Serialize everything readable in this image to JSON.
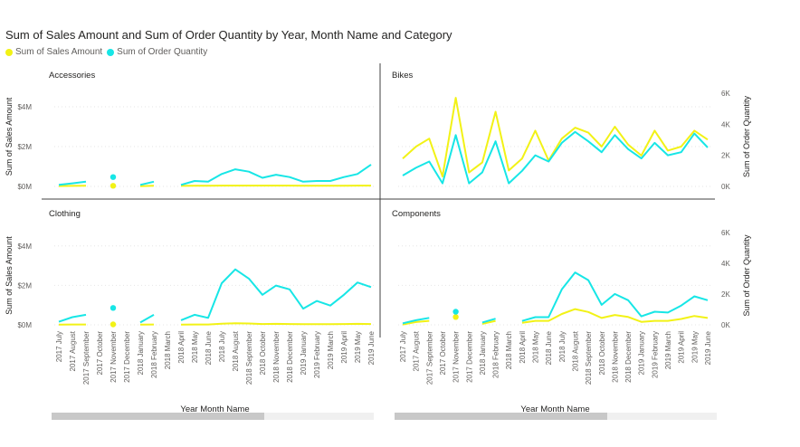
{
  "title": "Sum of Sales Amount and Sum of Order Quantity by Year, Month Name and Category",
  "legend": [
    {
      "label": "Sum of Sales Amount",
      "color": "#f2f216"
    },
    {
      "label": "Sum of Order Quantity",
      "color": "#17e6e6"
    }
  ],
  "chart_data": {
    "type": "line",
    "x_label": "Year Month Name",
    "y_left_label": "Sum of Sales Amount",
    "y_right_label": "Sum of Order Quantity",
    "y_left_ticks": [
      "$0M",
      "$2M",
      "$4M"
    ],
    "y_right_ticks": [
      "0K",
      "2K",
      "4K",
      "6K"
    ],
    "y_left_range": [
      0,
      5000000
    ],
    "y_right_range": [
      0,
      6400
    ],
    "categories": [
      "2017 July",
      "2017 August",
      "2017 September",
      "2017 October",
      "2017 November",
      "2017 December",
      "2018 January",
      "2018 February",
      "2018 March",
      "2018 April",
      "2018 May",
      "2018 June",
      "2018 July",
      "2018 August",
      "2018 September",
      "2018 October",
      "2018 November",
      "2018 December",
      "2019 January",
      "2019 February",
      "2019 March",
      "2019 April",
      "2019 May",
      "2019 June"
    ],
    "panels": [
      {
        "name": "Accessories",
        "sales": [
          20000,
          25000,
          30000,
          null,
          30000,
          null,
          15000,
          35000,
          null,
          25000,
          35000,
          35000,
          40000,
          40000,
          40000,
          40000,
          40000,
          40000,
          35000,
          35000,
          35000,
          35000,
          40000,
          40000
        ],
        "orders": [
          100,
          200,
          300,
          null,
          600,
          null,
          100,
          300,
          null,
          100,
          350,
          300,
          800,
          1100,
          950,
          550,
          750,
          600,
          300,
          350,
          350,
          600,
          800,
          1400
        ]
      },
      {
        "name": "Bikes",
        "sales": [
          1400000,
          2000000,
          2400000,
          500000,
          4450000,
          700000,
          1200000,
          3750000,
          800000,
          1400000,
          2800000,
          1300000,
          2400000,
          2950000,
          2700000,
          2000000,
          3000000,
          2100000,
          1550000,
          2800000,
          1800000,
          2000000,
          2800000,
          2350000
        ],
        "orders": [
          700,
          1200,
          1600,
          200,
          3300,
          200,
          900,
          2900,
          200,
          1000,
          2000,
          1600,
          2800,
          3500,
          2900,
          2200,
          3300,
          2400,
          1800,
          2800,
          2000,
          2200,
          3400,
          2500
        ]
      },
      {
        "name": "Clothing",
        "sales": [
          15000,
          20000,
          20000,
          null,
          25000,
          null,
          10000,
          20000,
          null,
          10000,
          20000,
          20000,
          60000,
          80000,
          70000,
          40000,
          50000,
          40000,
          30000,
          30000,
          30000,
          40000,
          50000,
          40000
        ],
        "orders": [
          200,
          500,
          650,
          null,
          1100,
          null,
          150,
          650,
          null,
          300,
          650,
          450,
          2700,
          3600,
          3000,
          1950,
          2550,
          2300,
          1050,
          1550,
          1250,
          1950,
          2750,
          2450
        ]
      },
      {
        "name": "Components",
        "sales": [
          15000,
          140000,
          200000,
          null,
          400000,
          null,
          50000,
          200000,
          null,
          100000,
          200000,
          200000,
          550000,
          800000,
          650000,
          350000,
          500000,
          400000,
          150000,
          200000,
          200000,
          300000,
          450000,
          350000
        ],
        "orders": [
          100,
          300,
          450,
          null,
          850,
          null,
          150,
          400,
          null,
          250,
          500,
          500,
          2300,
          3400,
          2900,
          1300,
          2000,
          1600,
          550,
          850,
          800,
          1250,
          1850,
          1600
        ]
      }
    ]
  },
  "scroll_left_thumb": 0.66,
  "scroll_right_thumb": 0.66
}
